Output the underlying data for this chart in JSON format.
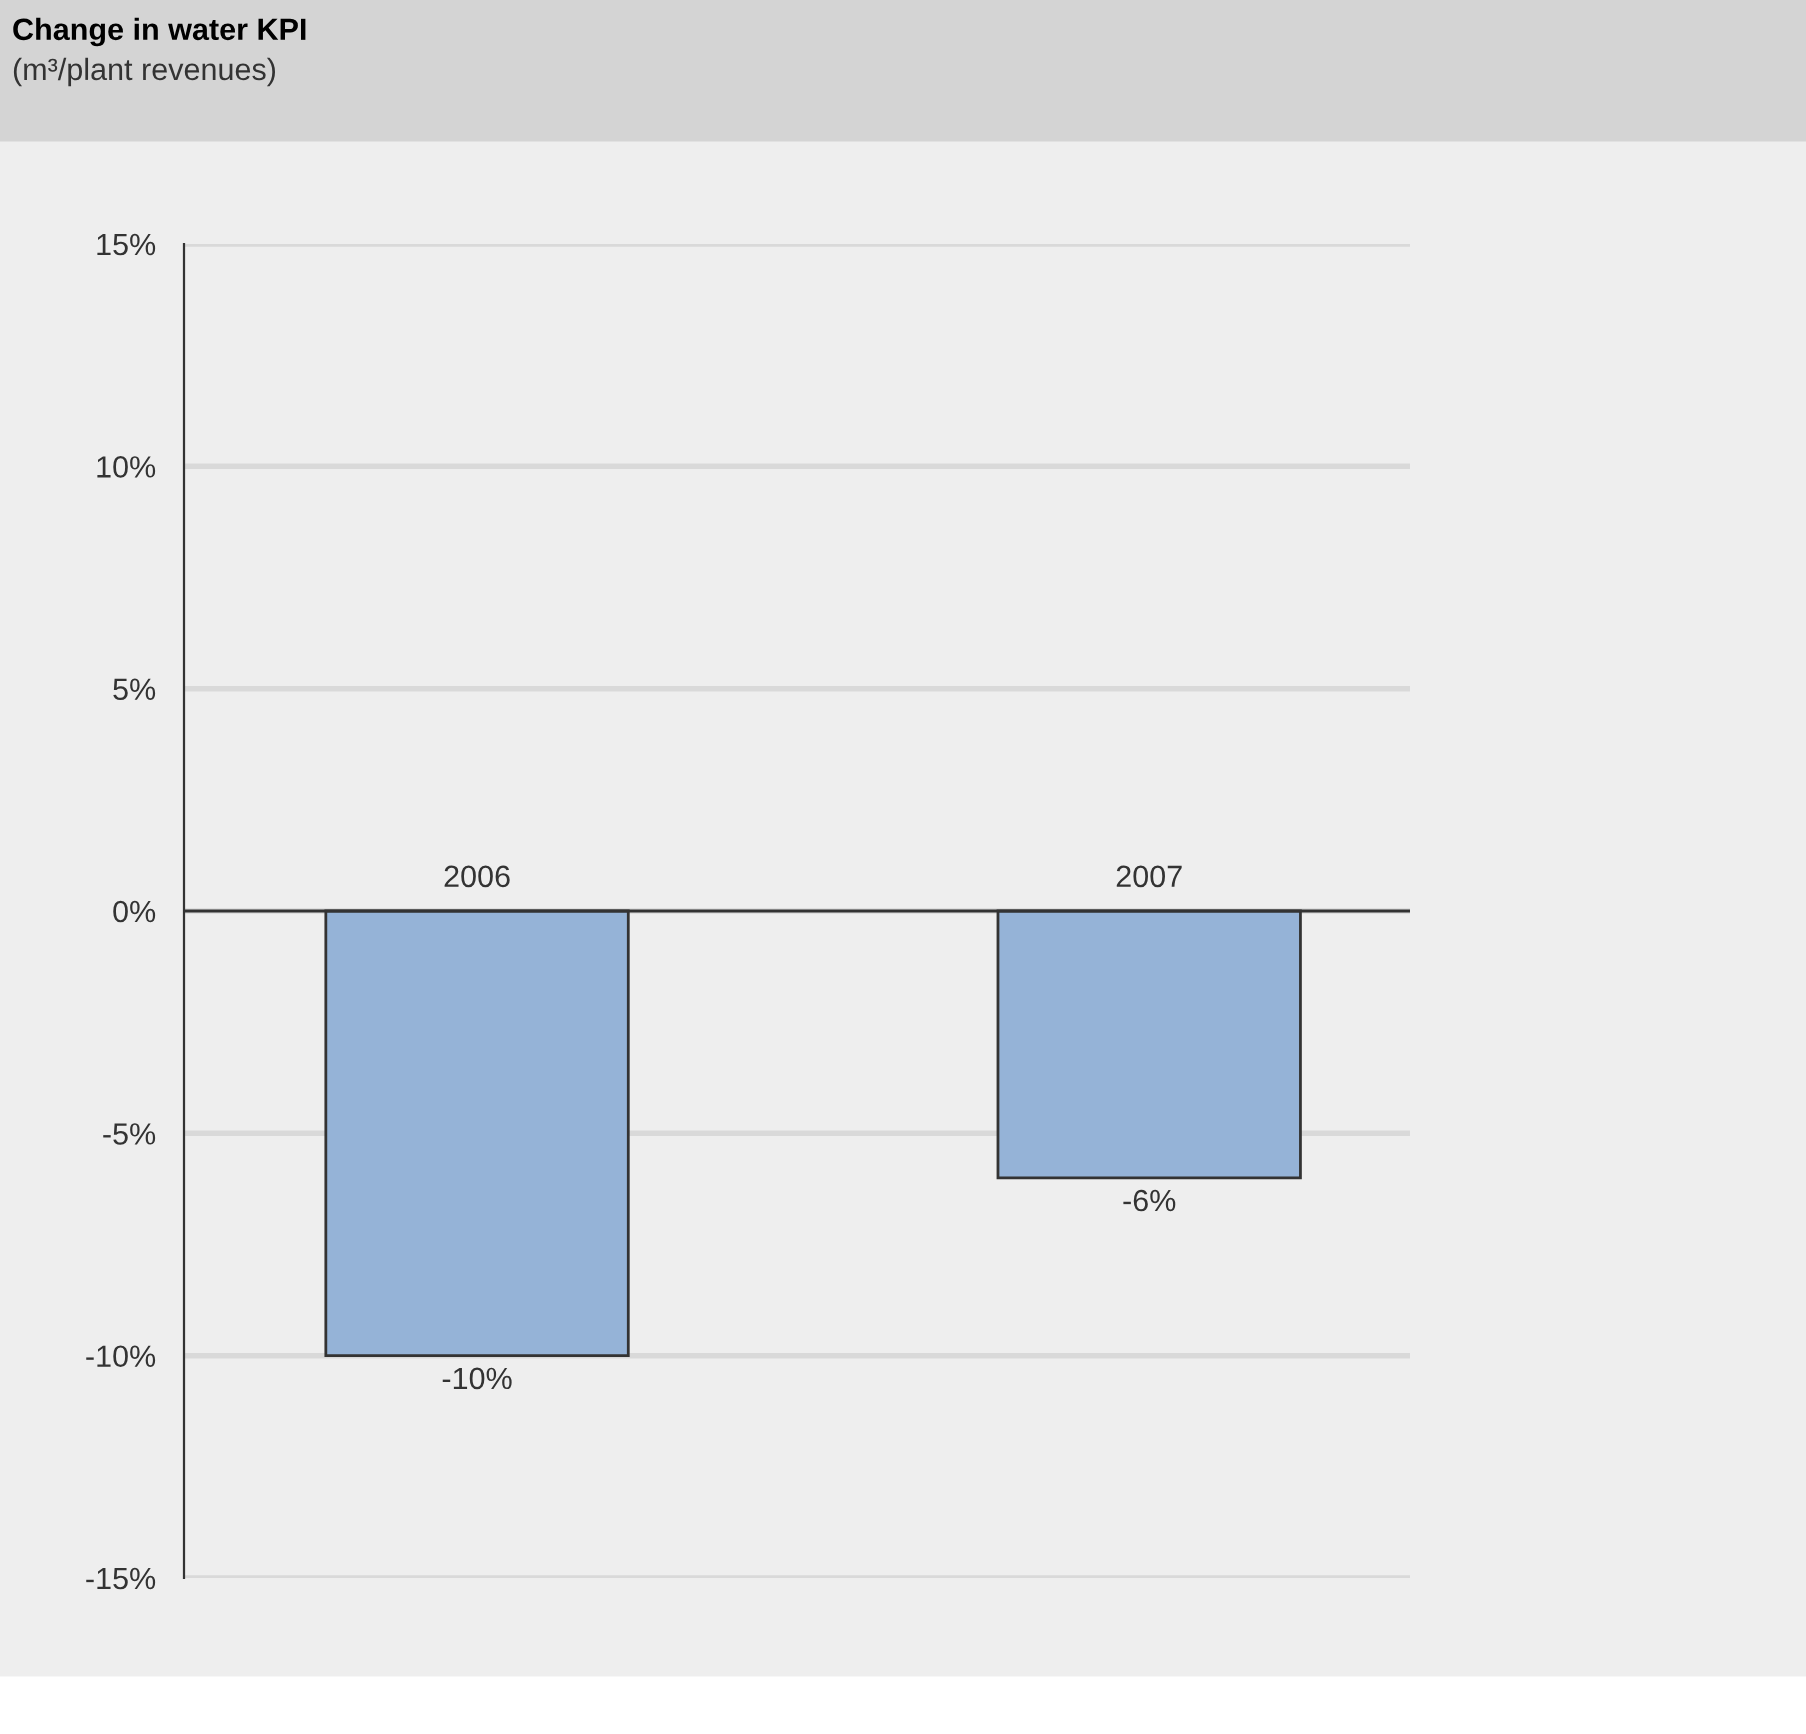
{
  "chart_data": {
    "type": "bar",
    "title": "Change in water KPI",
    "subtitle": "(m³/plant revenues)",
    "categories": [
      "2006",
      "2007"
    ],
    "values": [
      -10,
      -6
    ],
    "color": "#95b3d7",
    "value_labels": [
      "-10%",
      "-6%"
    ],
    "ylim": [
      -15,
      15
    ],
    "yticks": [
      {
        "value": -15,
        "label": "-15%"
      },
      {
        "value": -10,
        "label": "-10%"
      },
      {
        "value": -5,
        "label": "-5%"
      },
      {
        "value": 0,
        "label": "0%"
      },
      {
        "value": 5,
        "label": "5%"
      },
      {
        "value": 10,
        "label": "10%"
      },
      {
        "value": 15,
        "label": "15%"
      }
    ],
    "grid": "y",
    "legend": false
  }
}
